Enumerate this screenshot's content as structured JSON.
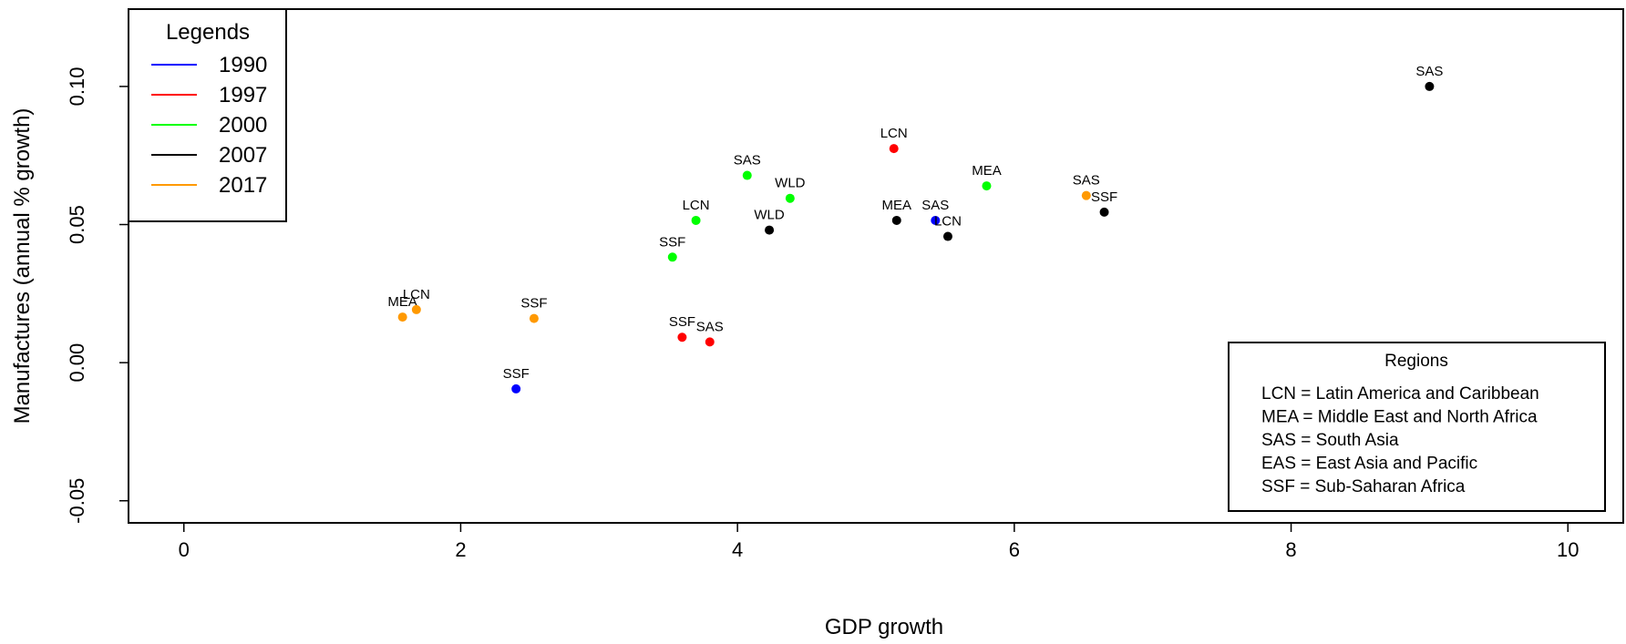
{
  "chart_data": {
    "type": "scatter",
    "xlabel": "GDP growth",
    "ylabel": "Manufactures (annual % growth)",
    "xlim": [
      -0.4,
      10.4
    ],
    "ylim": [
      -0.058,
      0.128
    ],
    "x_ticks": [
      0,
      2,
      4,
      6,
      8,
      10
    ],
    "y_ticks": [
      -0.05,
      0.0,
      0.05,
      0.1
    ],
    "y_tick_labels": [
      "-0.05",
      "0.00",
      "0.05",
      "0.10"
    ],
    "grid": false,
    "legend": {
      "title": "Legends",
      "placement": "top-left",
      "entries": [
        {
          "name": "1990",
          "color": "#0000ff"
        },
        {
          "name": "1997",
          "color": "#ff0000"
        },
        {
          "name": "2000",
          "color": "#00ff00"
        },
        {
          "name": "2007",
          "color": "#000000"
        },
        {
          "name": "2017",
          "color": "#ff9900"
        }
      ]
    },
    "series": [
      {
        "name": "1990",
        "color": "#0000ff",
        "points": [
          {
            "x": 2.4,
            "y": -0.0095,
            "label": "SSF"
          },
          {
            "x": 5.43,
            "y": 0.0515,
            "label": "SAS"
          }
        ]
      },
      {
        "name": "1997",
        "color": "#ff0000",
        "points": [
          {
            "x": 3.6,
            "y": 0.0092,
            "label": "SSF"
          },
          {
            "x": 3.8,
            "y": 0.0075,
            "label": "SAS"
          },
          {
            "x": 5.13,
            "y": 0.0775,
            "label": "LCN"
          }
        ]
      },
      {
        "name": "2000",
        "color": "#00ff00",
        "points": [
          {
            "x": 3.53,
            "y": 0.0382,
            "label": "SSF"
          },
          {
            "x": 3.7,
            "y": 0.0515,
            "label": "LCN"
          },
          {
            "x": 4.07,
            "y": 0.0678,
            "label": "SAS"
          },
          {
            "x": 4.38,
            "y": 0.0595,
            "label": "WLD"
          },
          {
            "x": 5.8,
            "y": 0.064,
            "label": "MEA"
          }
        ]
      },
      {
        "name": "2007",
        "color": "#000000",
        "points": [
          {
            "x": 4.23,
            "y": 0.048,
            "label": "WLD"
          },
          {
            "x": 5.15,
            "y": 0.0515,
            "label": "MEA"
          },
          {
            "x": 5.52,
            "y": 0.0457,
            "label": "LCN"
          },
          {
            "x": 6.65,
            "y": 0.0545,
            "label": "SSF"
          },
          {
            "x": 9.0,
            "y": 0.1,
            "label": "SAS"
          }
        ]
      },
      {
        "name": "2017",
        "color": "#ff9900",
        "points": [
          {
            "x": 1.58,
            "y": 0.0165,
            "label": "MEA"
          },
          {
            "x": 1.68,
            "y": 0.0192,
            "label": "LCN"
          },
          {
            "x": 2.53,
            "y": 0.016,
            "label": "SSF"
          },
          {
            "x": 6.52,
            "y": 0.0605,
            "label": "SAS"
          }
        ]
      }
    ],
    "regions_box": {
      "title": "Regions",
      "placement": "bottom-right",
      "lines": [
        "LCN = Latin America and Caribbean",
        "MEA = Middle East and North Africa",
        "SAS = South Asia",
        "EAS = East Asia and Pacific",
        "SSF = Sub-Saharan Africa"
      ]
    }
  }
}
